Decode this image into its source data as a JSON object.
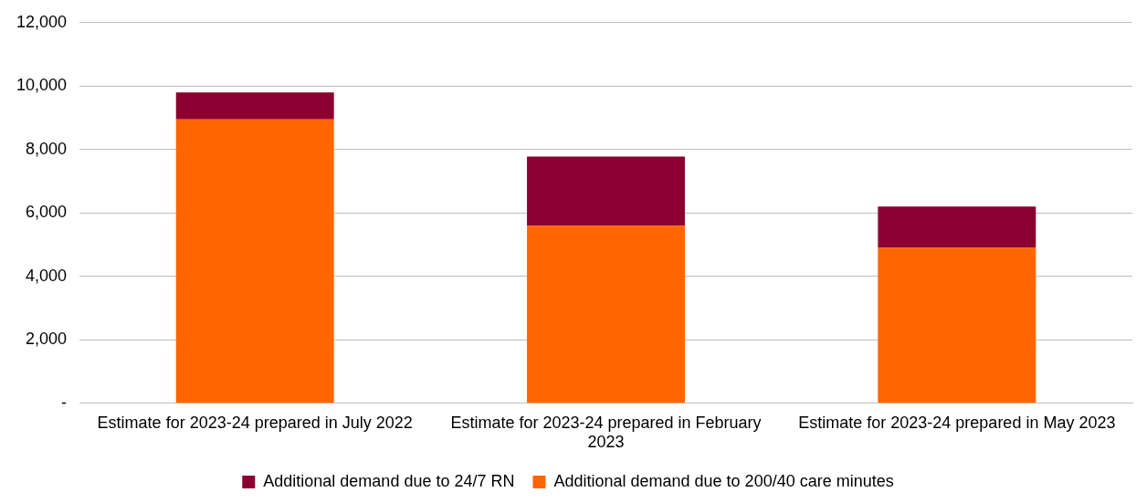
{
  "chart_data": {
    "type": "bar",
    "stacked": true,
    "categories": [
      "Estimate for 2023-24 prepared in July 2022",
      "Estimate for 2023-24 prepared in February 2023",
      "Estimate for 2023-24 prepared in May 2023"
    ],
    "series": [
      {
        "name": "Additional demand due to 200/40 care minutes",
        "color": "#ff6600",
        "values": [
          8950,
          5600,
          4900
        ]
      },
      {
        "name": "Additional demand due to 24/7 RN",
        "color": "#8b0030",
        "values": [
          850,
          2180,
          1300
        ]
      }
    ],
    "ylim": [
      0,
      12000
    ],
    "yticks": [
      {
        "value": 0,
        "label": "-"
      },
      {
        "value": 2000,
        "label": "2,000"
      },
      {
        "value": 4000,
        "label": "4,000"
      },
      {
        "value": 6000,
        "label": "6,000"
      },
      {
        "value": 8000,
        "label": "8,000"
      },
      {
        "value": 10000,
        "label": "10,000"
      },
      {
        "value": 12000,
        "label": "12,000"
      }
    ],
    "grid": "y",
    "legend": "bottom"
  }
}
